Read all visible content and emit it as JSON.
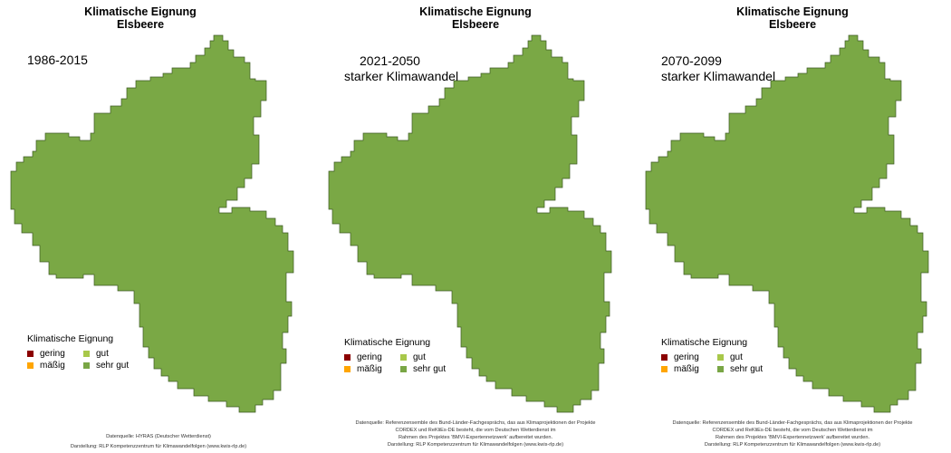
{
  "map_title": {
    "line1": "Klimatische Eignung",
    "line2": "Elsbeere"
  },
  "panels": [
    {
      "period_line1": "1986-2015",
      "period_line2": "",
      "footer": [
        "Datenquelle: HYRAS (Deutscher Wetterdienst)",
        "Darstellung: RLP Kompetenzzentrum für Klimawandelfolgen (www.kwis-rlp.de)"
      ]
    },
    {
      "period_line1": "2021-2050",
      "period_line2": "starker Klimawandel",
      "footer": [
        "Datenquelle: Referenzensemble des Bund-Länder-Fachgesprächs, das aus Klimaprojektionen der Projekte",
        "CORDEX und ReKliEs-DE besteht, die vom Deutschen Wetterdienst im",
        "Rahmen des Projektes 'BMVI-Expertennetzwerk' aufbereitet wurden.",
        "Darstellung: RLP Kompetenzzentrum für Klimawandelfolgen (www.kwis-rlp.de)"
      ]
    },
    {
      "period_line1": "2070-2099",
      "period_line2": "starker Klimawandel",
      "footer": [
        "Datenquelle: Referenzensemble des Bund-Länder-Fachgesprächs, das aus Klimaprojektionen der Projekte",
        "CORDEX und ReKliEs-DE besteht, die vom Deutschen Wetterdienst im",
        "Rahmen des Projektes 'BMVI-Expertennetzwerk' aufbereitet wurden.",
        "Darstellung: RLP Kompetenzzentrum für Klimawandelfolgen (www.kwis-rlp.de)"
      ]
    }
  ],
  "legend": {
    "title": "Klimatische Eignung",
    "items": [
      {
        "label": "gering",
        "color": "#8b0000"
      },
      {
        "label": "gut",
        "color": "#a8c84a"
      },
      {
        "label": "mäßig",
        "color": "#ffa500"
      },
      {
        "label": "sehr gut",
        "color": "#79a645"
      }
    ]
  },
  "map_fill_color": "#7aa845",
  "map_suitability_class": "sehr gut"
}
